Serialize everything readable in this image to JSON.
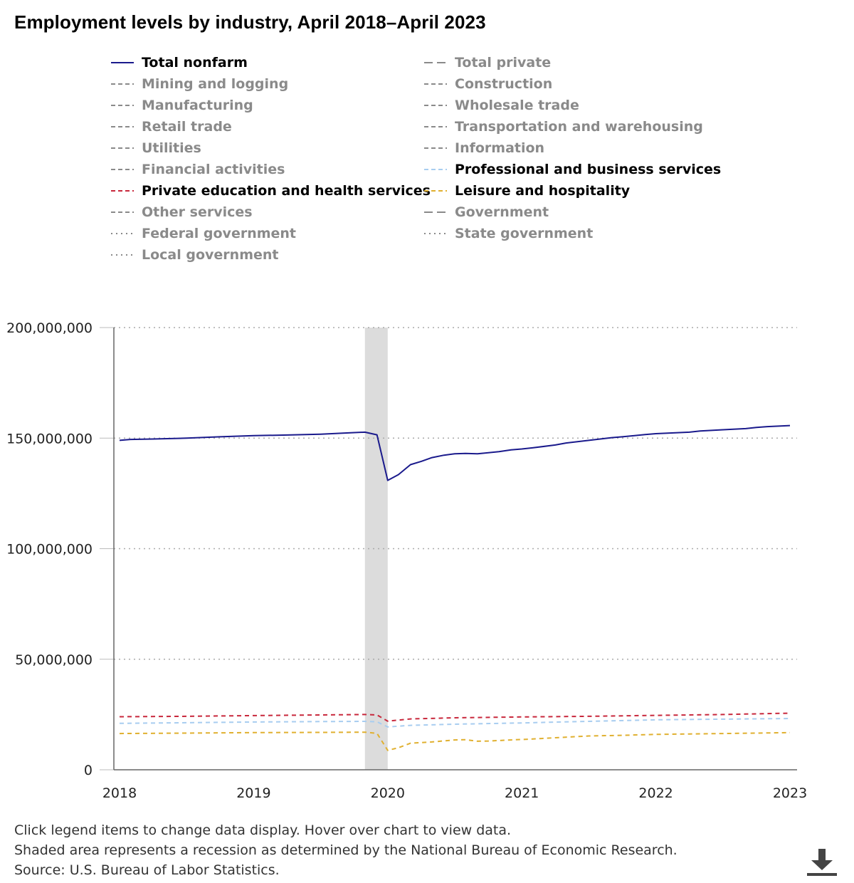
{
  "chart_data": {
    "type": "line",
    "title": "Employment levels by industry, April 2018–April 2023",
    "xlabel": "",
    "ylabel": "",
    "x_ticks": [
      "2018",
      "2019",
      "2020",
      "2021",
      "2022",
      "2023"
    ],
    "x_range": [
      2018.0,
      2023.0
    ],
    "y_ticks": [
      "0",
      "50,000,000",
      "100,000,000",
      "150,000,000",
      "200,000,000"
    ],
    "ylim": [
      0,
      200000000
    ],
    "grid": "horizontal dotted",
    "recession": {
      "start": 2019.83,
      "end": 2020.0,
      "color": "#dcdcdc"
    },
    "legend": [
      {
        "label": "Total nonfarm",
        "style": "solid",
        "color": "#1a1a8c",
        "active": true
      },
      {
        "label": "Total private",
        "style": "longdash",
        "color": "#8a8a8a",
        "active": false
      },
      {
        "label": "Mining and logging",
        "style": "dash",
        "color": "#8a8a8a",
        "active": false
      },
      {
        "label": "Construction",
        "style": "dash",
        "color": "#8a8a8a",
        "active": false
      },
      {
        "label": "Manufacturing",
        "style": "dash",
        "color": "#8a8a8a",
        "active": false
      },
      {
        "label": "Wholesale trade",
        "style": "dash",
        "color": "#8a8a8a",
        "active": false
      },
      {
        "label": "Retail trade",
        "style": "dash",
        "color": "#8a8a8a",
        "active": false
      },
      {
        "label": "Transportation and warehousing",
        "style": "dash",
        "color": "#8a8a8a",
        "active": false
      },
      {
        "label": "Utilities",
        "style": "dash",
        "color": "#8a8a8a",
        "active": false
      },
      {
        "label": "Information",
        "style": "dash",
        "color": "#8a8a8a",
        "active": false
      },
      {
        "label": "Financial activities",
        "style": "dash",
        "color": "#8a8a8a",
        "active": false
      },
      {
        "label": "Professional and business services",
        "style": "dash",
        "color": "#a8cdf0",
        "active": true
      },
      {
        "label": "Private education and health services",
        "style": "dash",
        "color": "#c8283c",
        "active": true
      },
      {
        "label": "Leisure and hospitality",
        "style": "dash",
        "color": "#e0b030",
        "active": true
      },
      {
        "label": "Other services",
        "style": "dash",
        "color": "#8a8a8a",
        "active": false
      },
      {
        "label": "Government",
        "style": "longdash",
        "color": "#8a8a8a",
        "active": false
      },
      {
        "label": "Federal government",
        "style": "dot",
        "color": "#8a8a8a",
        "active": false
      },
      {
        "label": "State government",
        "style": "dot",
        "color": "#8a8a8a",
        "active": false
      },
      {
        "label": "Local government",
        "style": "dot",
        "color": "#8a8a8a",
        "active": false
      }
    ],
    "series": [
      {
        "name": "Total nonfarm",
        "color": "#1a1a8c",
        "dash": "none",
        "points": [
          [
            2018.0,
            149000000
          ],
          [
            2018.08,
            149400000
          ],
          [
            2018.25,
            149600000
          ],
          [
            2018.5,
            150000000
          ],
          [
            2018.75,
            150600000
          ],
          [
            2019.0,
            151100000
          ],
          [
            2019.25,
            151400000
          ],
          [
            2019.5,
            151800000
          ],
          [
            2019.75,
            152500000
          ],
          [
            2019.83,
            152700000
          ],
          [
            2019.92,
            151500000
          ],
          [
            2020.0,
            130900000
          ],
          [
            2020.08,
            133500000
          ],
          [
            2020.17,
            138000000
          ],
          [
            2020.25,
            139500000
          ],
          [
            2020.33,
            141200000
          ],
          [
            2020.42,
            142300000
          ],
          [
            2020.5,
            142900000
          ],
          [
            2020.58,
            143100000
          ],
          [
            2020.67,
            142900000
          ],
          [
            2020.83,
            143900000
          ],
          [
            2020.92,
            144700000
          ],
          [
            2021.0,
            145100000
          ],
          [
            2021.08,
            145600000
          ],
          [
            2021.25,
            146900000
          ],
          [
            2021.33,
            147800000
          ],
          [
            2021.5,
            149000000
          ],
          [
            2021.67,
            150200000
          ],
          [
            2021.75,
            150600000
          ],
          [
            2021.92,
            151600000
          ],
          [
            2022.0,
            152000000
          ],
          [
            2022.25,
            152700000
          ],
          [
            2022.33,
            153200000
          ],
          [
            2022.5,
            153800000
          ],
          [
            2022.67,
            154300000
          ],
          [
            2022.75,
            154800000
          ],
          [
            2022.83,
            155200000
          ],
          [
            2023.0,
            155700000
          ]
        ]
      },
      {
        "name": "Private education and health services",
        "color": "#c8283c",
        "dash": "6 5",
        "points": [
          [
            2018.0,
            24000000
          ],
          [
            2018.5,
            24200000
          ],
          [
            2019.0,
            24500000
          ],
          [
            2019.5,
            24800000
          ],
          [
            2019.83,
            25000000
          ],
          [
            2019.92,
            24800000
          ],
          [
            2020.0,
            22000000
          ],
          [
            2020.17,
            23000000
          ],
          [
            2020.5,
            23500000
          ],
          [
            2021.0,
            23900000
          ],
          [
            2021.5,
            24200000
          ],
          [
            2022.0,
            24600000
          ],
          [
            2022.5,
            25000000
          ],
          [
            2023.0,
            25600000
          ]
        ]
      },
      {
        "name": "Professional and business services",
        "color": "#a8cdf0",
        "dash": "6 5",
        "points": [
          [
            2018.0,
            21000000
          ],
          [
            2018.5,
            21300000
          ],
          [
            2019.0,
            21600000
          ],
          [
            2019.5,
            21800000
          ],
          [
            2019.83,
            21900000
          ],
          [
            2019.92,
            21700000
          ],
          [
            2020.0,
            19400000
          ],
          [
            2020.17,
            20100000
          ],
          [
            2020.5,
            20600000
          ],
          [
            2021.0,
            21200000
          ],
          [
            2021.5,
            21900000
          ],
          [
            2022.0,
            22600000
          ],
          [
            2022.5,
            22900000
          ],
          [
            2023.0,
            23200000
          ]
        ]
      },
      {
        "name": "Leisure and hospitality",
        "color": "#e0b030",
        "dash": "6 5",
        "points": [
          [
            2018.0,
            16400000
          ],
          [
            2018.5,
            16600000
          ],
          [
            2019.0,
            16800000
          ],
          [
            2019.5,
            16900000
          ],
          [
            2019.83,
            17000000
          ],
          [
            2019.92,
            16500000
          ],
          [
            2020.0,
            8800000
          ],
          [
            2020.08,
            10000000
          ],
          [
            2020.17,
            12000000
          ],
          [
            2020.33,
            12600000
          ],
          [
            2020.5,
            13500000
          ],
          [
            2020.58,
            13600000
          ],
          [
            2020.67,
            12900000
          ],
          [
            2020.75,
            13000000
          ],
          [
            2020.92,
            13500000
          ],
          [
            2021.08,
            13900000
          ],
          [
            2021.25,
            14500000
          ],
          [
            2021.5,
            15300000
          ],
          [
            2021.75,
            15600000
          ],
          [
            2022.0,
            16000000
          ],
          [
            2022.25,
            16200000
          ],
          [
            2022.5,
            16400000
          ],
          [
            2022.75,
            16600000
          ],
          [
            2023.0,
            16800000
          ]
        ]
      }
    ]
  },
  "notes": [
    "Click legend items to change data display. Hover over chart to view data.",
    "Shaded area represents a recession as determined by the National Bureau of Economic Research.",
    "Source: U.S. Bureau of Labor Statistics."
  ],
  "icons": {
    "download": "download-icon"
  }
}
